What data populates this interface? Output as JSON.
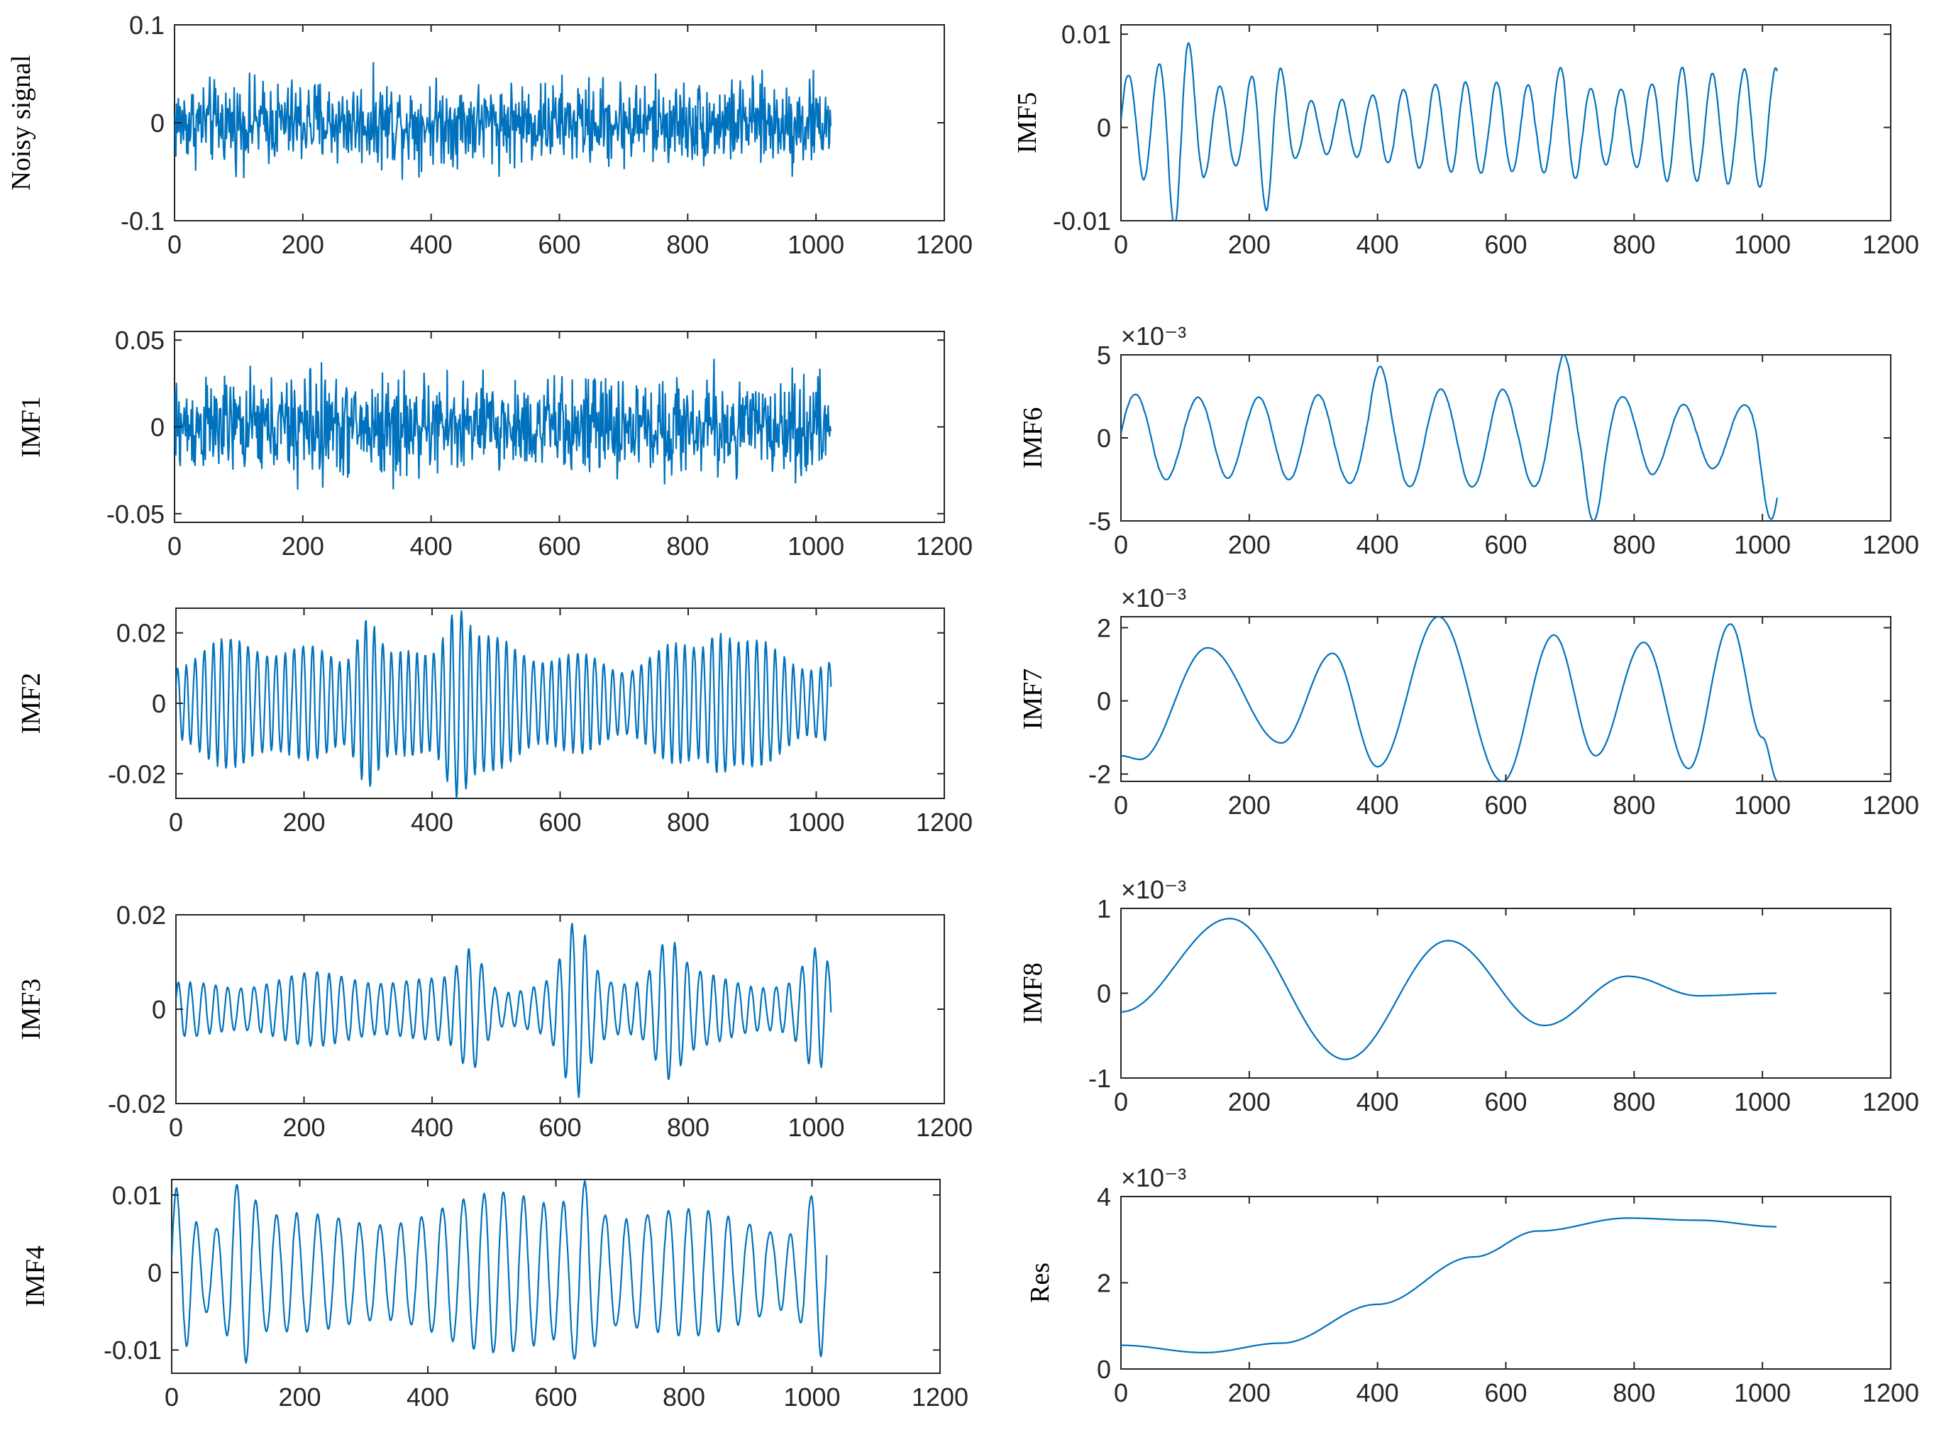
{
  "chart_data": [
    {
      "type": "line",
      "ylabel": "Noisy signal",
      "xlim": [
        0,
        1200
      ],
      "ylim": [
        -0.1,
        0.1
      ],
      "xticks": [
        0,
        200,
        400,
        600,
        800,
        1000,
        1200
      ],
      "xtick_labels": [
        "0",
        "200",
        "400",
        "600",
        "800",
        "1000",
        "1200"
      ],
      "yticks": [
        -0.1,
        0,
        0.1
      ],
      "ytick_labels": [
        "-0.1",
        "0",
        "0.1"
      ],
      "exponent_label": "",
      "grid": false,
      "series_color": "#0072BD",
      "signal": {
        "n": 1024,
        "style": "noise",
        "amplitude": 0.062,
        "envelope_peaks": [
          [
            210,
            0.068
          ],
          [
            340,
            0.066
          ],
          [
            725,
            0.065
          ],
          [
            980,
            0.069
          ]
        ]
      }
    },
    {
      "type": "line",
      "ylabel": "IMF1",
      "xlim": [
        0,
        1200
      ],
      "ylim": [
        -0.055,
        0.055
      ],
      "xticks": [
        0,
        200,
        400,
        600,
        800,
        1000,
        1200
      ],
      "xtick_labels": [
        "0",
        "200",
        "400",
        "600",
        "800",
        "1000",
        "1200"
      ],
      "yticks": [
        -0.05,
        0,
        0.05
      ],
      "ytick_labels": [
        "-0.05",
        "0",
        "0.05"
      ],
      "exponent_label": "",
      "grid": false,
      "series_color": "#0072BD",
      "signal": {
        "n": 1024,
        "style": "noise",
        "amplitude": 0.04,
        "envelope_peaks": [
          [
            210,
            0.054
          ],
          [
            340,
            0.05
          ],
          [
            850,
            0.046
          ]
        ]
      }
    },
    {
      "type": "line",
      "ylabel": "IMF2",
      "xlim": [
        0,
        1200
      ],
      "ylim": [
        -0.027,
        0.027
      ],
      "xticks": [
        0,
        200,
        400,
        600,
        800,
        1000,
        1200
      ],
      "xtick_labels": [
        "0",
        "200",
        "400",
        "600",
        "800",
        "1000",
        "1200"
      ],
      "yticks": [
        -0.02,
        0,
        0.02
      ],
      "ytick_labels": [
        "-0.02",
        "0",
        "0.02"
      ],
      "exponent_label": "",
      "grid": false,
      "series_color": "#0072BD",
      "signal": {
        "n": 1024,
        "style": "oscillation",
        "period": 14,
        "amplitude": 0.012,
        "envelope_peaks": [
          [
            300,
            0.024
          ],
          [
            440,
            0.027
          ],
          [
            850,
            0.02
          ]
        ]
      }
    },
    {
      "type": "line",
      "ylabel": "IMF3",
      "xlim": [
        0,
        1200
      ],
      "ylim": [
        -0.02,
        0.02
      ],
      "xticks": [
        0,
        200,
        400,
        600,
        800,
        1000,
        1200
      ],
      "xtick_labels": [
        "0",
        "200",
        "400",
        "600",
        "800",
        "1000",
        "1200"
      ],
      "yticks": [
        -0.02,
        0,
        0.02
      ],
      "ytick_labels": [
        "-0.02",
        "0",
        "0.02"
      ],
      "exponent_label": "",
      "grid": false,
      "series_color": "#0072BD",
      "signal": {
        "n": 1024,
        "style": "oscillation",
        "period": 20,
        "amplitude": 0.005,
        "envelope_peaks": [
          [
            460,
            0.013
          ],
          [
            625,
            0.019
          ],
          [
            770,
            0.015
          ],
          [
            1000,
            0.013
          ]
        ]
      }
    },
    {
      "type": "line",
      "ylabel": "IMF4",
      "xlim": [
        0,
        1200
      ],
      "ylim": [
        -0.013,
        0.012
      ],
      "xticks": [
        0,
        200,
        400,
        600,
        800,
        1000,
        1200
      ],
      "xtick_labels": [
        "0",
        "200",
        "400",
        "600",
        "800",
        "1000",
        "1200"
      ],
      "yticks": [
        -0.01,
        0,
        0.01
      ],
      "ytick_labels": [
        "-0.01",
        "0",
        "0.01"
      ],
      "exponent_label": "",
      "grid": false,
      "series_color": "#0072BD",
      "signal": {
        "n": 1024,
        "style": "oscillation",
        "period": 32,
        "amplitude": 0.0065,
        "envelope_peaks": [
          [
            10,
            0.011
          ],
          [
            110,
            0.012
          ],
          [
            640,
            0.012
          ],
          [
            1010,
            0.011
          ]
        ]
      }
    },
    {
      "type": "line",
      "ylabel": "IMF5",
      "xlim": [
        0,
        1200
      ],
      "ylim": [
        -0.01,
        0.011
      ],
      "xticks": [
        0,
        200,
        400,
        600,
        800,
        1000,
        1200
      ],
      "xtick_labels": [
        "0",
        "200",
        "400",
        "600",
        "800",
        "1000",
        "1200"
      ],
      "yticks": [
        -0.01,
        0,
        0.01
      ],
      "ytick_labels": [
        "-0.01",
        "0",
        "0.01"
      ],
      "exponent_label": "",
      "grid": false,
      "series_color": "#0072BD",
      "signal": {
        "n": 1024,
        "style": "oscillation",
        "period": 48,
        "amplitude": 0.004,
        "envelope_peaks": [
          [
            90,
            0.011
          ],
          [
            230,
            0.009
          ],
          [
            690,
            0.0065
          ],
          [
            870,
            0.0065
          ]
        ]
      }
    },
    {
      "type": "line",
      "ylabel": "IMF6",
      "xlim": [
        0,
        1200
      ],
      "ylim": [
        -5,
        5
      ],
      "xticks": [
        0,
        200,
        400,
        600,
        800,
        1000,
        1200
      ],
      "xtick_labels": [
        "0",
        "200",
        "400",
        "600",
        "800",
        "1000",
        "1200"
      ],
      "yticks": [
        -5,
        0,
        5
      ],
      "ytick_labels": [
        "-5",
        "0",
        "5"
      ],
      "exponent_label": "×10⁻³",
      "grid": false,
      "series_color": "#0072BD",
      "signal": {
        "n": 1024,
        "style": "oscillation",
        "period": 95,
        "amplitude": 2.2,
        "envelope_peaks": [
          [
            405,
            4.3
          ],
          [
            690,
            5.0
          ],
          [
            735,
            5.0
          ],
          [
            1010,
            5.0
          ]
        ]
      }
    },
    {
      "type": "line",
      "ylabel": "IMF7",
      "xlim": [
        0,
        1200
      ],
      "ylim": [
        -2.2,
        2.3
      ],
      "xticks": [
        0,
        200,
        400,
        600,
        800,
        1000,
        1200
      ],
      "xtick_labels": [
        "0",
        "200",
        "400",
        "600",
        "800",
        "1000",
        "1200"
      ],
      "yticks": [
        -2,
        0,
        2
      ],
      "ytick_labels": [
        "-2",
        "0",
        "2"
      ],
      "exponent_label": "×10⁻³",
      "grid": false,
      "series_color": "#0072BD",
      "signal": {
        "n": 1024,
        "points": [
          [
            0,
            -1.5
          ],
          [
            30,
            -1.6
          ],
          [
            135,
            1.45
          ],
          [
            250,
            -1.15
          ],
          [
            330,
            1.3
          ],
          [
            400,
            -1.8
          ],
          [
            495,
            2.3
          ],
          [
            595,
            -2.2
          ],
          [
            675,
            1.8
          ],
          [
            740,
            -1.5
          ],
          [
            815,
            1.6
          ],
          [
            885,
            -1.85
          ],
          [
            950,
            2.1
          ],
          [
            1000,
            -1.0
          ],
          [
            1024,
            -2.2
          ]
        ]
      }
    },
    {
      "type": "line",
      "ylabel": "IMF8",
      "xlim": [
        0,
        1200
      ],
      "ylim": [
        -1,
        1
      ],
      "xticks": [
        0,
        200,
        400,
        600,
        800,
        1000,
        1200
      ],
      "xtick_labels": [
        "0",
        "200",
        "400",
        "600",
        "800",
        "1000",
        "1200"
      ],
      "yticks": [
        -1,
        0,
        1
      ],
      "ytick_labels": [
        "-1",
        "0",
        "1"
      ],
      "exponent_label": "×10⁻³",
      "grid": false,
      "series_color": "#0072BD",
      "signal": {
        "n": 1024,
        "points": [
          [
            0,
            -0.22
          ],
          [
            170,
            0.88
          ],
          [
            350,
            -0.78
          ],
          [
            510,
            0.62
          ],
          [
            660,
            -0.38
          ],
          [
            790,
            0.2
          ],
          [
            900,
            -0.03
          ],
          [
            1024,
            0.0
          ]
        ]
      }
    },
    {
      "type": "line",
      "ylabel": "Res",
      "xlim": [
        0,
        1200
      ],
      "ylim": [
        0,
        4
      ],
      "xticks": [
        0,
        200,
        400,
        600,
        800,
        1000,
        1200
      ],
      "xtick_labels": [
        "0",
        "200",
        "400",
        "600",
        "800",
        "1000",
        "1200"
      ],
      "yticks": [
        0,
        2,
        4
      ],
      "ytick_labels": [
        "0",
        "2",
        "4"
      ],
      "exponent_label": "×10⁻³",
      "grid": false,
      "series_color": "#0072BD",
      "signal": {
        "n": 1024,
        "points": [
          [
            0,
            0.55
          ],
          [
            130,
            0.38
          ],
          [
            250,
            0.6
          ],
          [
            400,
            1.5
          ],
          [
            550,
            2.6
          ],
          [
            650,
            3.2
          ],
          [
            790,
            3.5
          ],
          [
            900,
            3.45
          ],
          [
            1024,
            3.3
          ]
        ]
      }
    }
  ]
}
